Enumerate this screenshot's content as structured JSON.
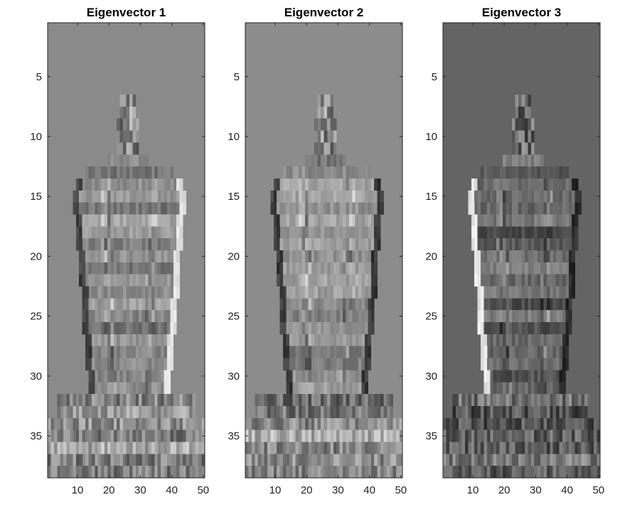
{
  "chart_data": [
    {
      "type": "heatmap",
      "title": "Eigenvector 1",
      "xlabel": "",
      "ylabel": "",
      "xlim": [
        0.5,
        50.5
      ],
      "ylim": [
        0.5,
        38.5
      ],
      "xticks": [
        10,
        20,
        30,
        40,
        50
      ],
      "yticks": [
        5,
        10,
        15,
        20,
        25,
        30,
        35
      ],
      "colormap": "gray",
      "background_gray": 138,
      "grid": false
    },
    {
      "type": "heatmap",
      "title": "Eigenvector 2",
      "xlabel": "",
      "ylabel": "",
      "xlim": [
        0.5,
        50.5
      ],
      "ylim": [
        0.5,
        38.5
      ],
      "xticks": [
        10,
        20,
        30,
        40,
        50
      ],
      "yticks": [
        5,
        10,
        15,
        20,
        25,
        30,
        35
      ],
      "colormap": "gray",
      "background_gray": 140,
      "grid": false
    },
    {
      "type": "heatmap",
      "title": "Eigenvector 3",
      "xlabel": "",
      "ylabel": "",
      "xlim": [
        0.5,
        50.5
      ],
      "ylim": [
        0.5,
        38.5
      ],
      "xticks": [
        10,
        20,
        30,
        40,
        50
      ],
      "yticks": [
        5,
        10,
        15,
        20,
        25,
        30,
        35
      ],
      "colormap": "gray",
      "background_gray": 100,
      "grid": false
    }
  ]
}
